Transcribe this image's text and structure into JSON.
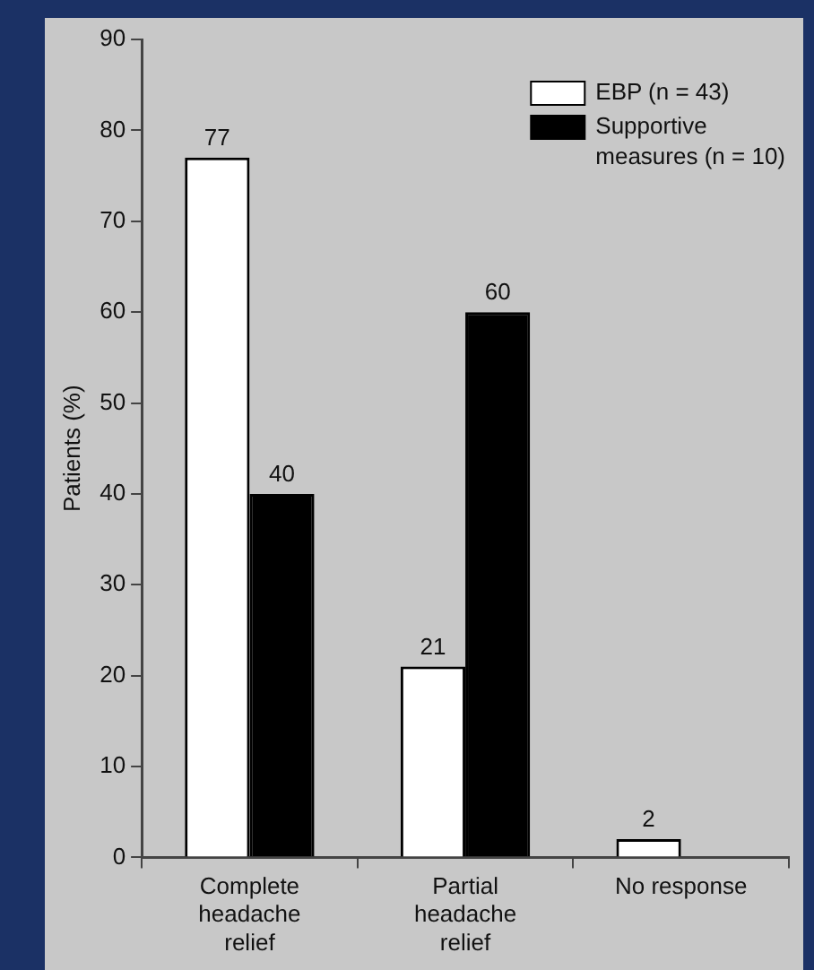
{
  "chart_data": {
    "type": "bar",
    "ylabel": "Patients (%)",
    "categories": [
      "Complete headache relief",
      "Partial headache relief",
      "No response"
    ],
    "series": [
      {
        "name": "EBP (n = 43)",
        "color": "#ffffff",
        "values": [
          77,
          21,
          2
        ],
        "value_labels": [
          "77",
          "21",
          "2"
        ]
      },
      {
        "name": "Supportive measures (n = 10)",
        "color": "#000000",
        "values": [
          40,
          60,
          0
        ],
        "value_labels": [
          "40",
          "60",
          null
        ]
      }
    ],
    "ylim": [
      0,
      90
    ],
    "yticks": [
      0,
      10,
      20,
      30,
      40,
      50,
      60,
      70,
      80,
      90
    ],
    "grid": false,
    "legend": "top right"
  }
}
